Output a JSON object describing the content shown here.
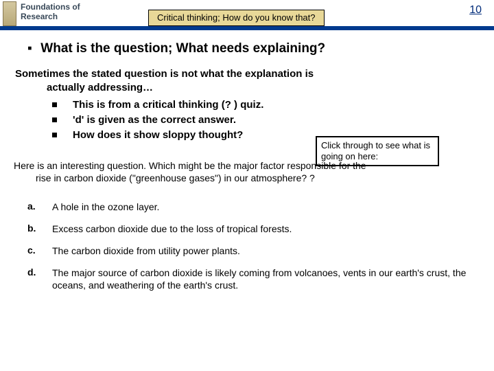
{
  "header": {
    "course_title_line1": "Foundations of",
    "course_title_line2": "Research",
    "banner_text": "Critical thinking; How do you know that?",
    "page_number": "10"
  },
  "main": {
    "heading": "What is the question; What needs explaining?",
    "intro_line1": "Sometimes the stated question is not what the explanation is",
    "intro_line2": "actually addressing…",
    "bullets": [
      "This is from a critical thinking (? ) quiz.",
      "'d' is given as the correct answer.",
      "How does it show sloppy thought?"
    ],
    "callout": "Click through to see what is going on here:",
    "question_line1": "Here is an interesting question. Which might be the major factor responsible for the",
    "question_line2": "rise in carbon dioxide (\"greenhouse gases\") in our atmosphere? ?",
    "options": [
      {
        "letter": "a.",
        "text": "A hole in the ozone layer."
      },
      {
        "letter": "b.",
        "text": "Excess carbon dioxide due to the loss of tropical forests."
      },
      {
        "letter": "c.",
        "text": "The carbon dioxide from utility power plants."
      },
      {
        "letter": "d.",
        "text": "The major source of carbon dioxide is likely coming from volcanoes, vents in our earth's crust, the oceans, and weathering of the earth's crust."
      }
    ]
  },
  "style": {
    "accent_color": "#003a8e",
    "banner_bg": "#e8d898",
    "text_color": "#000000",
    "header_text_color": "#384858"
  }
}
